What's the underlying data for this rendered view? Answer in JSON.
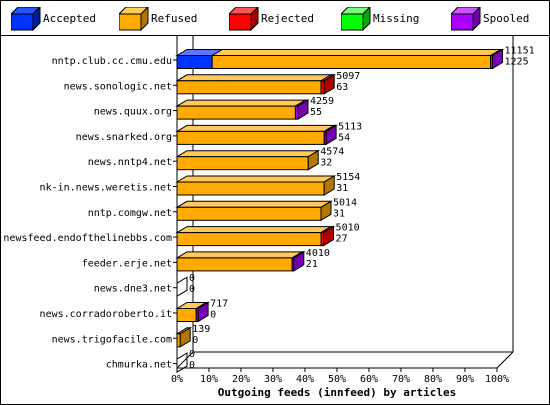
{
  "chart_data": {
    "type": "bar",
    "orientation": "horizontal",
    "stacked": true,
    "percent": true,
    "xlabel": "Outgoing feeds (innfeed) by articles",
    "xlim": [
      0,
      100
    ],
    "x_ticks": [
      "0%",
      "10%",
      "20%",
      "30%",
      "40%",
      "50%",
      "60%",
      "70%",
      "80%",
      "90%",
      "100%"
    ],
    "legend": [
      {
        "name": "Accepted",
        "color": "#0033ff"
      },
      {
        "name": "Refused",
        "color": "#ffaa00"
      },
      {
        "name": "Rejected",
        "color": "#ff0000"
      },
      {
        "name": "Missing",
        "color": "#00ff00"
      },
      {
        "name": "Spooled",
        "color": "#aa00ff"
      }
    ],
    "categories": [
      "nntp.club.cc.cmu.edu",
      "news.sonologic.net",
      "news.quux.org",
      "news.snarked.org",
      "news.nntp4.net",
      "nk-in.news.weretis.net",
      "nntp.comgw.net",
      "newsfeed.endofthelinebbs.com",
      "feeder.erje.net",
      "news.dne3.net",
      "news.corradoroberto.it",
      "news.trigofacile.com",
      "chmurka.net"
    ],
    "annotations": [
      [
        "11151",
        "1225"
      ],
      [
        "5097",
        "63"
      ],
      [
        "4259",
        "55"
      ],
      [
        "5113",
        "54"
      ],
      [
        "4574",
        "32"
      ],
      [
        "5154",
        "31"
      ],
      [
        "5014",
        "31"
      ],
      [
        "5010",
        "27"
      ],
      [
        "4010",
        "21"
      ],
      [
        "0",
        "0"
      ],
      [
        "717",
        "0"
      ],
      [
        "139",
        "0"
      ],
      [
        "0",
        "0"
      ]
    ],
    "series": [
      {
        "name": "Accepted",
        "values": [
          11,
          0,
          0,
          0,
          0,
          0,
          0,
          0,
          0,
          0,
          0,
          0,
          0
        ]
      },
      {
        "name": "Refused",
        "values": [
          87,
          45,
          37,
          46,
          41,
          46,
          45,
          45,
          36,
          0,
          6,
          1,
          0
        ]
      },
      {
        "name": "Rejected",
        "values": [
          0,
          1,
          0,
          0,
          0,
          0,
          0,
          0.8,
          0,
          0,
          0,
          0,
          0
        ]
      },
      {
        "name": "Missing",
        "values": [
          0,
          0,
          0,
          0,
          0,
          0,
          0,
          0,
          0,
          0,
          0,
          0,
          0
        ]
      },
      {
        "name": "Spooled",
        "values": [
          0.6,
          0,
          0.8,
          0.6,
          0,
          0,
          0,
          0,
          0.5,
          0,
          0.6,
          0,
          0
        ]
      }
    ]
  }
}
